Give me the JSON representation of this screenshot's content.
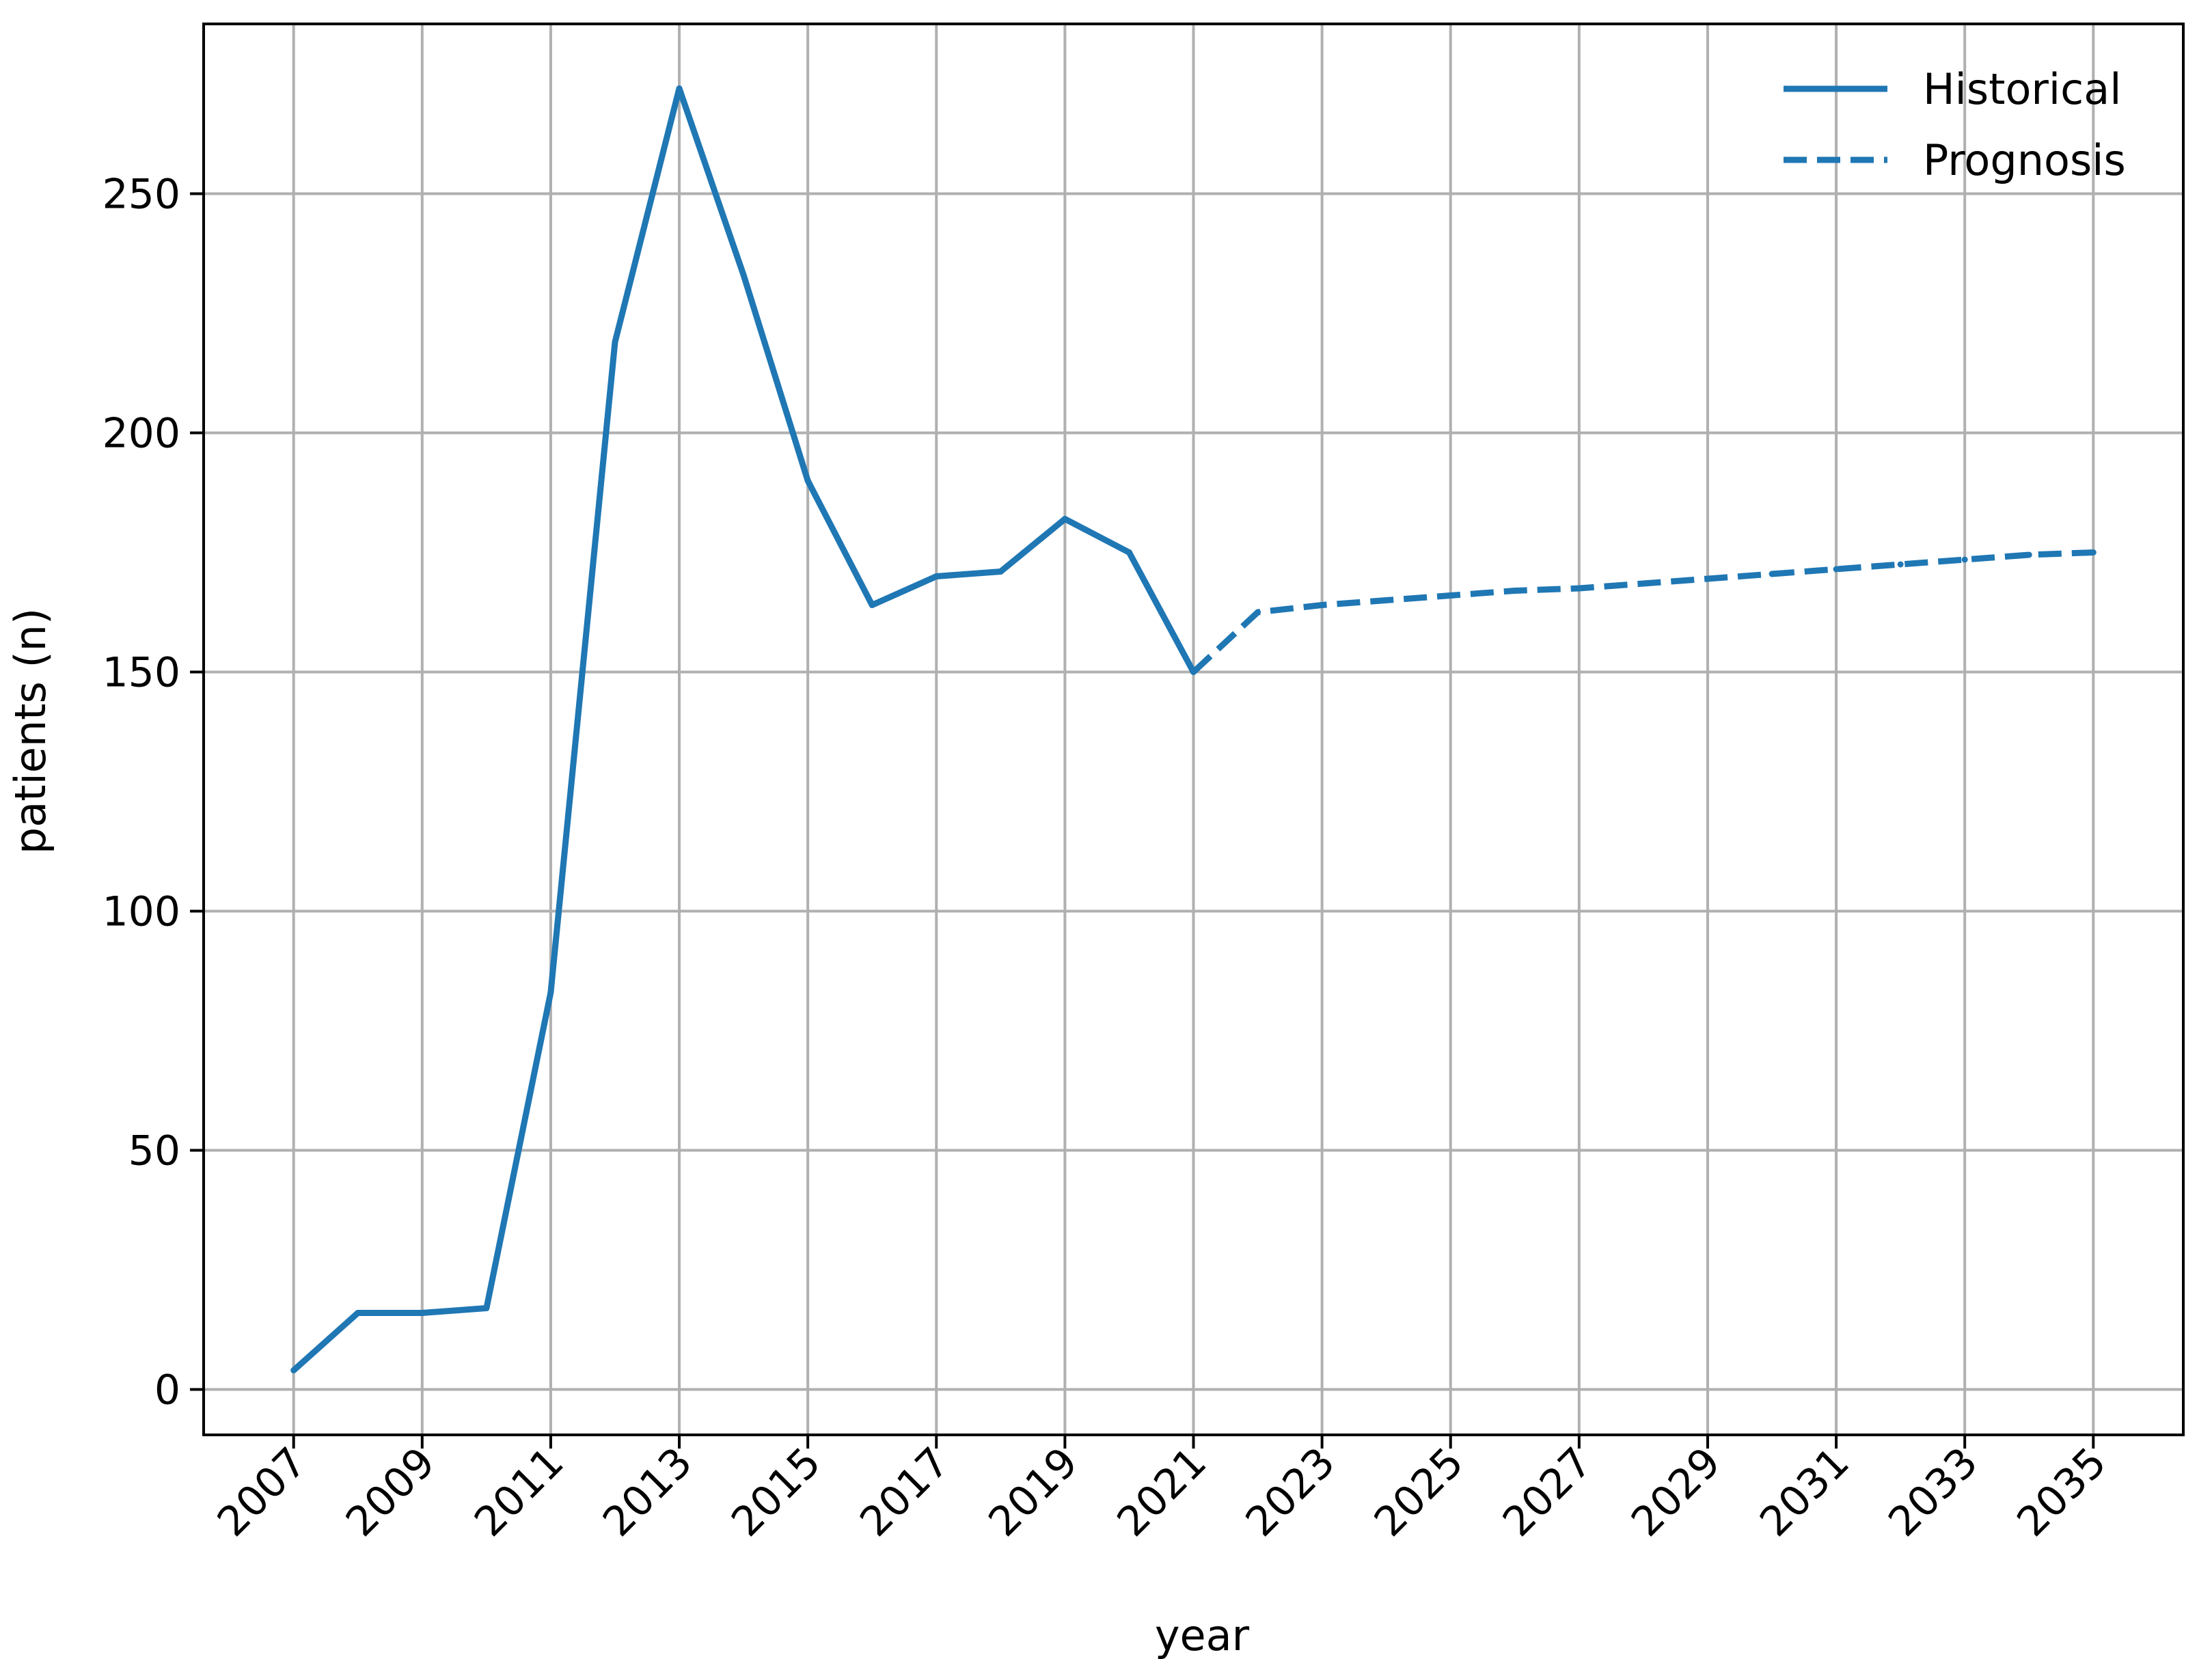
{
  "chart_data": {
    "type": "line",
    "xlabel": "year",
    "ylabel": "patients (n)",
    "xlim": [
      2005.6,
      2036.4
    ],
    "ylim": [
      -9.5,
      285.5
    ],
    "xticks": [
      2007,
      2009,
      2011,
      2013,
      2015,
      2017,
      2019,
      2021,
      2023,
      2025,
      2027,
      2029,
      2031,
      2033,
      2035
    ],
    "yticks": [
      0,
      50,
      100,
      150,
      200,
      250
    ],
    "grid": true,
    "legend_position": "top-right",
    "color": "#1f77b4",
    "series": [
      {
        "name": "Historical",
        "style": "solid",
        "x": [
          2007,
          2008,
          2009,
          2010,
          2011,
          2012,
          2013,
          2014,
          2015,
          2016,
          2017,
          2018,
          2019,
          2020,
          2021
        ],
        "y": [
          4,
          16,
          16,
          17,
          83,
          219,
          272,
          233,
          190,
          164,
          170,
          171,
          182,
          175,
          150
        ]
      },
      {
        "name": "Prognosis",
        "style": "dashed",
        "x": [
          2021,
          2022,
          2023,
          2024,
          2025,
          2026,
          2027,
          2028,
          2029,
          2030,
          2031,
          2032,
          2033,
          2034,
          2035
        ],
        "y": [
          150,
          162.5,
          164,
          165,
          166,
          167,
          167.5,
          168.5,
          169.5,
          170.5,
          171.5,
          172.5,
          173.5,
          174.5,
          175
        ]
      }
    ]
  }
}
